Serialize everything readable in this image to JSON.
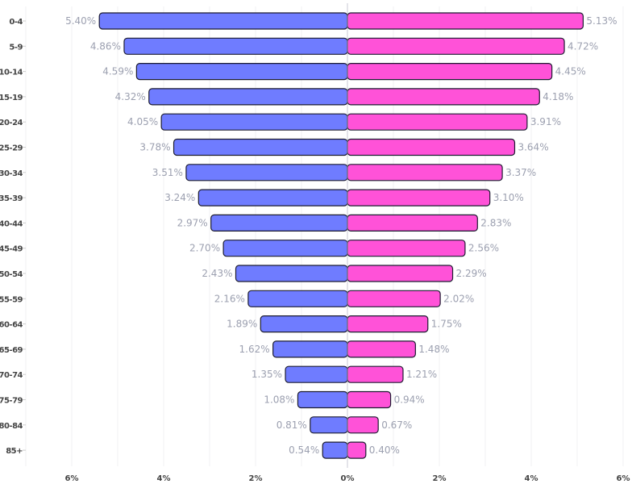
{
  "chart_data": {
    "type": "bar",
    "orientation": "horizontal-diverging",
    "categories": [
      "0-4",
      "5-9",
      "10-14",
      "15-19",
      "20-24",
      "25-29",
      "30-34",
      "35-39",
      "40-44",
      "45-49",
      "50-54",
      "55-59",
      "60-64",
      "65-69",
      "70-74",
      "75-79",
      "80-84",
      "85+"
    ],
    "series": [
      {
        "side": "left",
        "color": "#6f7cff",
        "values": [
          5.4,
          4.86,
          4.59,
          4.32,
          4.05,
          3.78,
          3.51,
          3.24,
          2.97,
          2.7,
          2.43,
          2.16,
          1.89,
          1.62,
          1.35,
          1.08,
          0.81,
          0.54
        ]
      },
      {
        "side": "right",
        "color": "#ff52d8",
        "values": [
          5.13,
          4.72,
          4.45,
          4.18,
          3.91,
          3.64,
          3.37,
          3.1,
          2.83,
          2.56,
          2.29,
          2.02,
          1.75,
          1.48,
          1.21,
          0.94,
          0.67,
          0.4
        ]
      }
    ],
    "value_format": "%",
    "x_ticks": [
      "6%",
      "4%",
      "2%",
      "0%",
      "2%",
      "4%",
      "6%"
    ],
    "xlim": [
      -7,
      6
    ],
    "grid": true,
    "title": "",
    "xlabel": "",
    "ylabel": ""
  }
}
